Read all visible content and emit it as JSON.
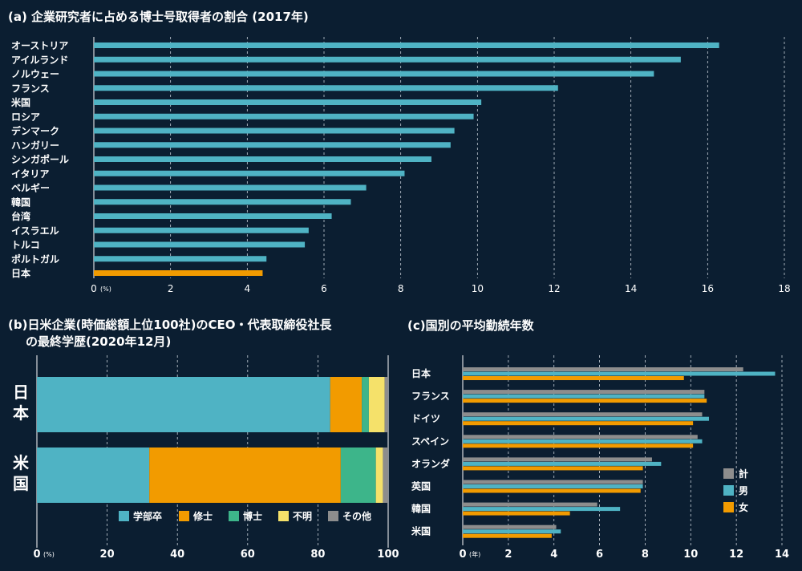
{
  "chart_data": [
    {
      "type": "bar",
      "orientation": "horizontal",
      "title": "(a) 企業研究者に占める博士号取得者の割合 (2017年)",
      "categories": [
        "オーストリア",
        "アイルランド",
        "ノルウェー",
        "フランス",
        "米国",
        "ロシア",
        "デンマーク",
        "ハンガリー",
        "シンガポール",
        "イタリア",
        "ベルギー",
        "韓国",
        "台湾",
        "イスラエル",
        "トルコ",
        "ポルトガル",
        "日本"
      ],
      "values": [
        16.3,
        15.3,
        14.6,
        12.1,
        10.1,
        9.9,
        9.4,
        9.3,
        8.8,
        8.1,
        7.1,
        6.7,
        6.2,
        5.6,
        5.5,
        4.5,
        4.4
      ],
      "highlight": "日本",
      "xlim": [
        0,
        18
      ],
      "xticks": [
        "0",
        "2",
        "4",
        "6",
        "8",
        "10",
        "12",
        "14",
        "16",
        "18"
      ],
      "xunit": "(%)",
      "grid": true
    },
    {
      "type": "bar",
      "orientation": "horizontal",
      "stacked": true,
      "title_line1": "(b)日米企業(時価総額上位100社)のCEO・代表取締役社長",
      "title_line2": "の最終学歴(2020年12月)",
      "categories": [
        "日本",
        "米国"
      ],
      "series": [
        {
          "name": "学部卒",
          "values": [
            83.5,
            32
          ]
        },
        {
          "name": "修士",
          "values": [
            9,
            54.5
          ]
        },
        {
          "name": "博士",
          "values": [
            2,
            10
          ]
        },
        {
          "name": "不明",
          "values": [
            4.5,
            2
          ]
        },
        {
          "name": "その他",
          "values": [
            1,
            1.5
          ]
        }
      ],
      "xlim": [
        0,
        100
      ],
      "xticks": [
        "0",
        "20",
        "40",
        "60",
        "80",
        "100"
      ],
      "xunit": "(%)",
      "legend": "bottom"
    },
    {
      "type": "bar",
      "orientation": "horizontal",
      "title": "(c)国別の平均勤続年数",
      "categories": [
        "日本",
        "フランス",
        "ドイツ",
        "スペイン",
        "オランダ",
        "英国",
        "韓国",
        "米国"
      ],
      "series": [
        {
          "name": "計",
          "values": [
            12.3,
            10.6,
            10.5,
            10.3,
            8.3,
            7.9,
            5.9,
            4.1
          ]
        },
        {
          "name": "男",
          "values": [
            13.7,
            10.6,
            10.8,
            10.5,
            8.7,
            7.9,
            6.9,
            4.3
          ]
        },
        {
          "name": "女",
          "values": [
            9.7,
            10.7,
            10.1,
            10.1,
            7.9,
            7.8,
            4.7,
            3.9
          ]
        }
      ],
      "xlim": [
        0,
        14
      ],
      "xticks": [
        "0",
        "2",
        "4",
        "6",
        "8",
        "10",
        "12",
        "14"
      ],
      "xunit": "(年)",
      "legend": "right"
    }
  ],
  "colors": {
    "background": "#0b1e31",
    "teal": "#4fb3c4",
    "orange": "#f29b00",
    "green": "#3db58a",
    "yellow": "#f5e16a",
    "gray": "#8d8d8d"
  }
}
